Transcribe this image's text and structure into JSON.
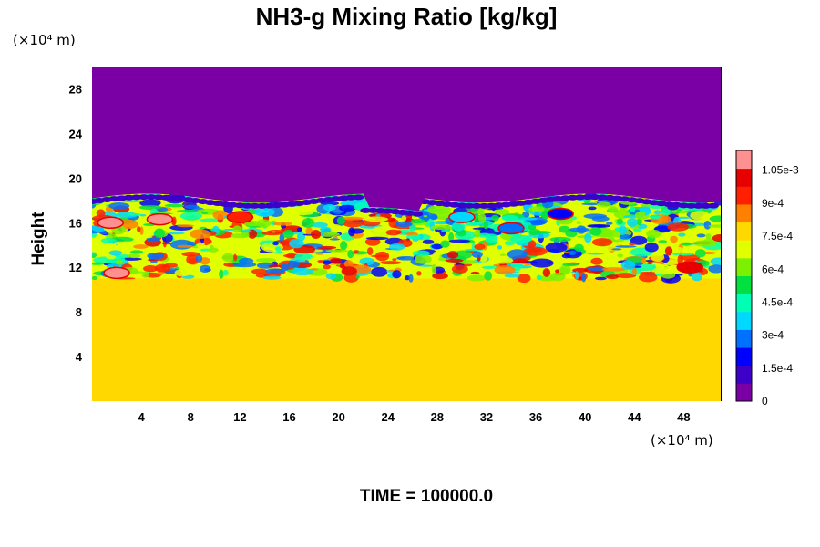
{
  "chart_data": {
    "type": "heatmap",
    "title": "NH3-g Mixing Ratio [kg/kg]",
    "ylabel": "Height",
    "y_unit": "(×10⁴ m)",
    "x_unit": "(×10⁴ m)",
    "x_ticks": [
      "4",
      "8",
      "12",
      "16",
      "20",
      "24",
      "28",
      "32",
      "36",
      "40",
      "44",
      "48"
    ],
    "y_ticks": [
      "4",
      "8",
      "12",
      "16",
      "20",
      "24",
      "28"
    ],
    "xlim": [
      0,
      51
    ],
    "ylim": [
      0,
      30
    ],
    "colorbar": {
      "ticks": [
        "0",
        "1.5e-4",
        "3e-4",
        "4.5e-4",
        "6e-4",
        "7.5e-4",
        "9e-4",
        "1.05e-3"
      ],
      "tick_values": [
        0,
        0.00015,
        0.0003,
        0.00045,
        0.0006,
        0.00075,
        0.0009,
        0.00105
      ],
      "range": [
        0,
        0.00114
      ],
      "colors": [
        "#7a00a5",
        "#3c00c8",
        "#0000ff",
        "#0070ff",
        "#00d8ff",
        "#00ffb4",
        "#00e040",
        "#7cf000",
        "#e0ff00",
        "#ffd800",
        "#ff8000",
        "#ff2000",
        "#e80000",
        "#ff9090"
      ]
    },
    "background_value": 0.00076,
    "top_value": 0,
    "features": [
      {
        "x": 2,
        "y": 11.5,
        "value": 0.00112
      },
      {
        "x": 5.5,
        "y": 16.3,
        "value": 0.00112
      },
      {
        "x": 1.5,
        "y": 16.0,
        "value": 0.00112
      },
      {
        "x": 48.5,
        "y": 12.0,
        "value": 0.001
      },
      {
        "x": 12,
        "y": 16.5,
        "value": 0.00092
      },
      {
        "x": 34,
        "y": 15.5,
        "value": 0.0003
      },
      {
        "x": 30,
        "y": 16.5,
        "value": 0.0004
      },
      {
        "x": 38,
        "y": 16.8,
        "value": 0.0002
      }
    ]
  },
  "footer": {
    "time_label": "TIME = 100000.0"
  }
}
